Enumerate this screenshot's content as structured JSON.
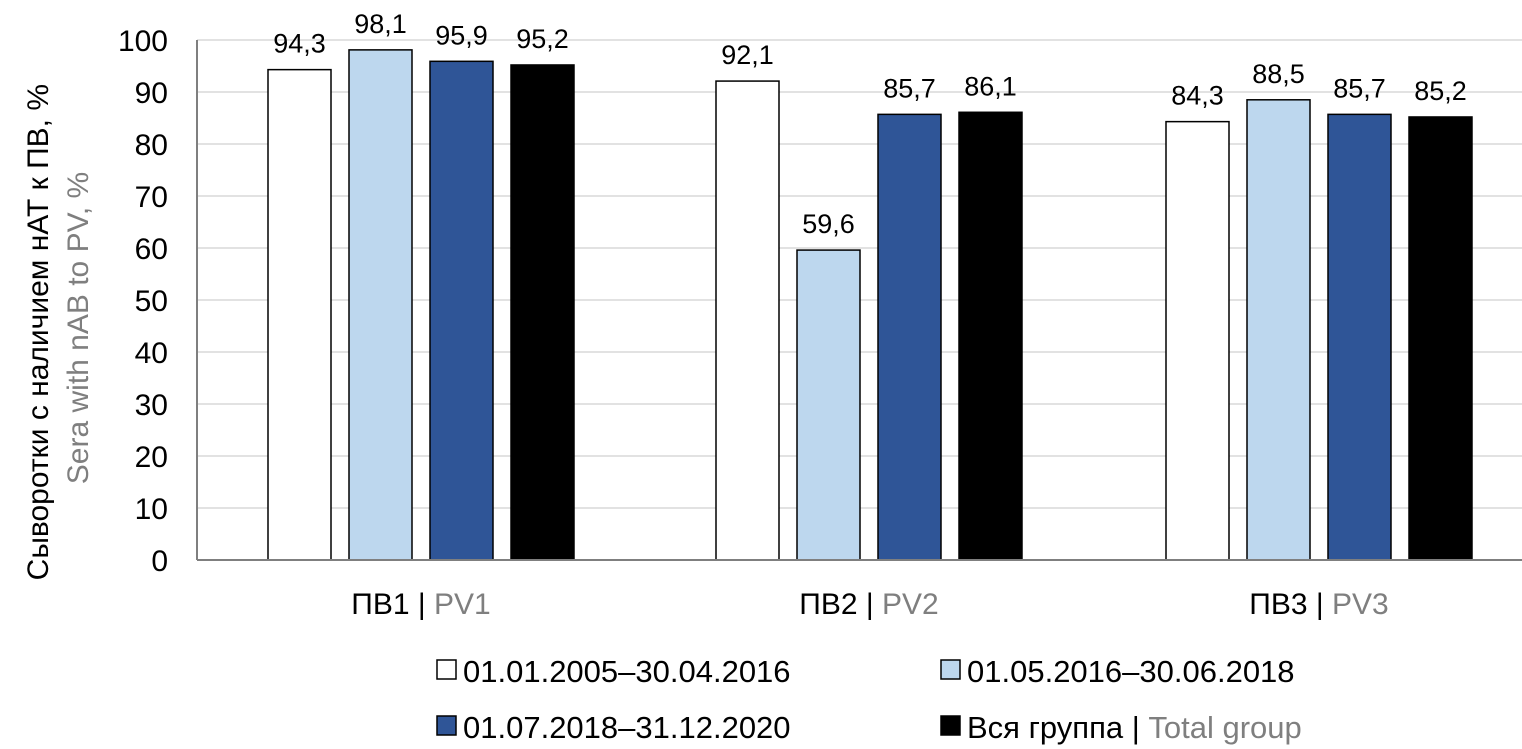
{
  "chart_data": {
    "type": "bar",
    "ylabel_ru": "Сыворотки с наличием нАТ к ПВ, %",
    "ylabel_en": "Sera with nAB to PV, %",
    "ylim": [
      0,
      100
    ],
    "ytick_step": 10,
    "grid": true,
    "legend_position": "bottom",
    "categories": [
      {
        "ru": "ПВ1",
        "sep": " | ",
        "en": "PV1"
      },
      {
        "ru": "ПВ2",
        "sep": " | ",
        "en": "PV2"
      },
      {
        "ru": "ПВ3",
        "sep": " | ",
        "en": "PV3"
      }
    ],
    "series": [
      {
        "name": "01.01.2005–30.04.2016",
        "name_en": "",
        "fill": "#ffffff",
        "values": [
          94.3,
          92.1,
          84.3
        ],
        "labels": [
          "94,3",
          "92,1",
          "84,3"
        ]
      },
      {
        "name": "01.05.2016–30.06.2018",
        "name_en": "",
        "fill": "#bdd7ee",
        "values": [
          98.1,
          59.6,
          88.5
        ],
        "labels": [
          "98,1",
          "59,6",
          "88,5"
        ]
      },
      {
        "name": "01.07.2018–31.12.2020",
        "name_en": "",
        "fill": "#2f5597",
        "values": [
          95.9,
          85.7,
          85.7
        ],
        "labels": [
          "95,9",
          "85,7",
          "85,7"
        ]
      },
      {
        "name": "Вся группа",
        "sep": " | ",
        "name_en": "Total group",
        "fill": "#000000",
        "values": [
          95.2,
          86.1,
          85.2
        ],
        "labels": [
          "95,2",
          "86,1",
          "85,2"
        ]
      }
    ],
    "colors": {
      "axis": "#7f7f7f",
      "grid": "#d9d9d9",
      "secondary_text": "#7f7f7f",
      "bar_stroke": "#000000"
    }
  }
}
